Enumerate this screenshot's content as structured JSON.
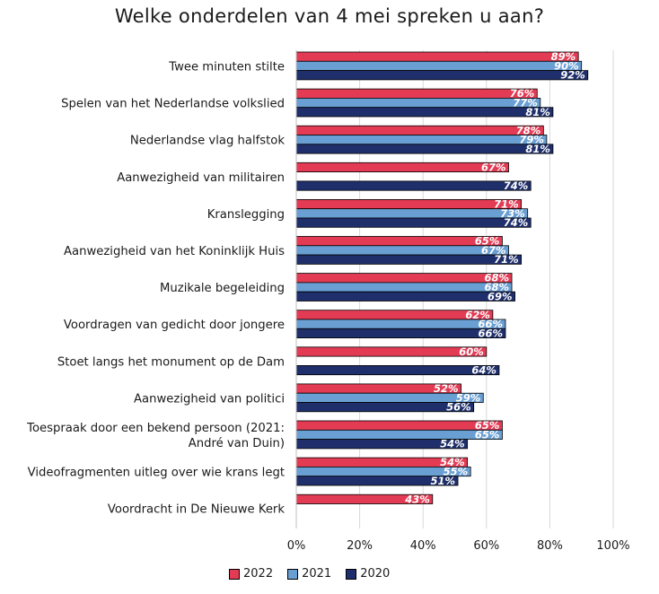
{
  "chart_data": {
    "type": "bar",
    "orientation": "horizontal",
    "title": "Welke onderdelen van 4 mei spreken u aan?",
    "xlim": [
      0,
      100
    ],
    "x_ticks": [
      "0%",
      "20%",
      "40%",
      "60%",
      "80%",
      "100%"
    ],
    "grid": true,
    "legend_position": "bottom",
    "categories": [
      [
        "Twee minuten stilte"
      ],
      [
        "Spelen van het Nederlandse volkslied"
      ],
      [
        "Nederlandse vlag halfstok"
      ],
      [
        "Aanwezigheid van militairen"
      ],
      [
        "Kranslegging"
      ],
      [
        "Aanwezigheid van het Koninklijk Huis"
      ],
      [
        "Muzikale begeleiding"
      ],
      [
        "Voordragen van gedicht door jongere"
      ],
      [
        "Stoet langs het monument op de Dam"
      ],
      [
        "Aanwezigheid van politici"
      ],
      [
        "Toespraak door een bekend persoon (2021:",
        "André van Duin)"
      ],
      [
        "Videofragmenten uitleg over wie krans legt"
      ],
      [
        "Voordracht in De Nieuwe Kerk"
      ]
    ],
    "series": [
      {
        "name": "2022",
        "color": "#e33b54",
        "values": [
          89,
          76,
          78,
          67,
          71,
          65,
          68,
          62,
          60,
          52,
          65,
          54,
          43
        ],
        "labels": [
          "89%",
          "76%",
          "78%",
          "67%",
          "71%",
          "65%",
          "68%",
          "62%",
          "60%",
          "52%",
          "65%",
          "54%",
          "43%"
        ]
      },
      {
        "name": "2021",
        "color": "#6a9fd3",
        "values": [
          90,
          77,
          79,
          null,
          73,
          67,
          68,
          66,
          null,
          59,
          65,
          55,
          null
        ],
        "labels": [
          "90%",
          "77%",
          "79%",
          null,
          "73%",
          "67%",
          "68%",
          "66%",
          null,
          "59%",
          "65%",
          "55%",
          null
        ]
      },
      {
        "name": "2020",
        "color": "#1f2f6b",
        "values": [
          92,
          81,
          81,
          74,
          74,
          71,
          69,
          66,
          64,
          56,
          54,
          51,
          null
        ],
        "labels": [
          "92%",
          "81%",
          "81%",
          "74%",
          "74%",
          "71%",
          "69%",
          "66%",
          "64%",
          "56%",
          "54%",
          "51%",
          null
        ]
      }
    ]
  }
}
